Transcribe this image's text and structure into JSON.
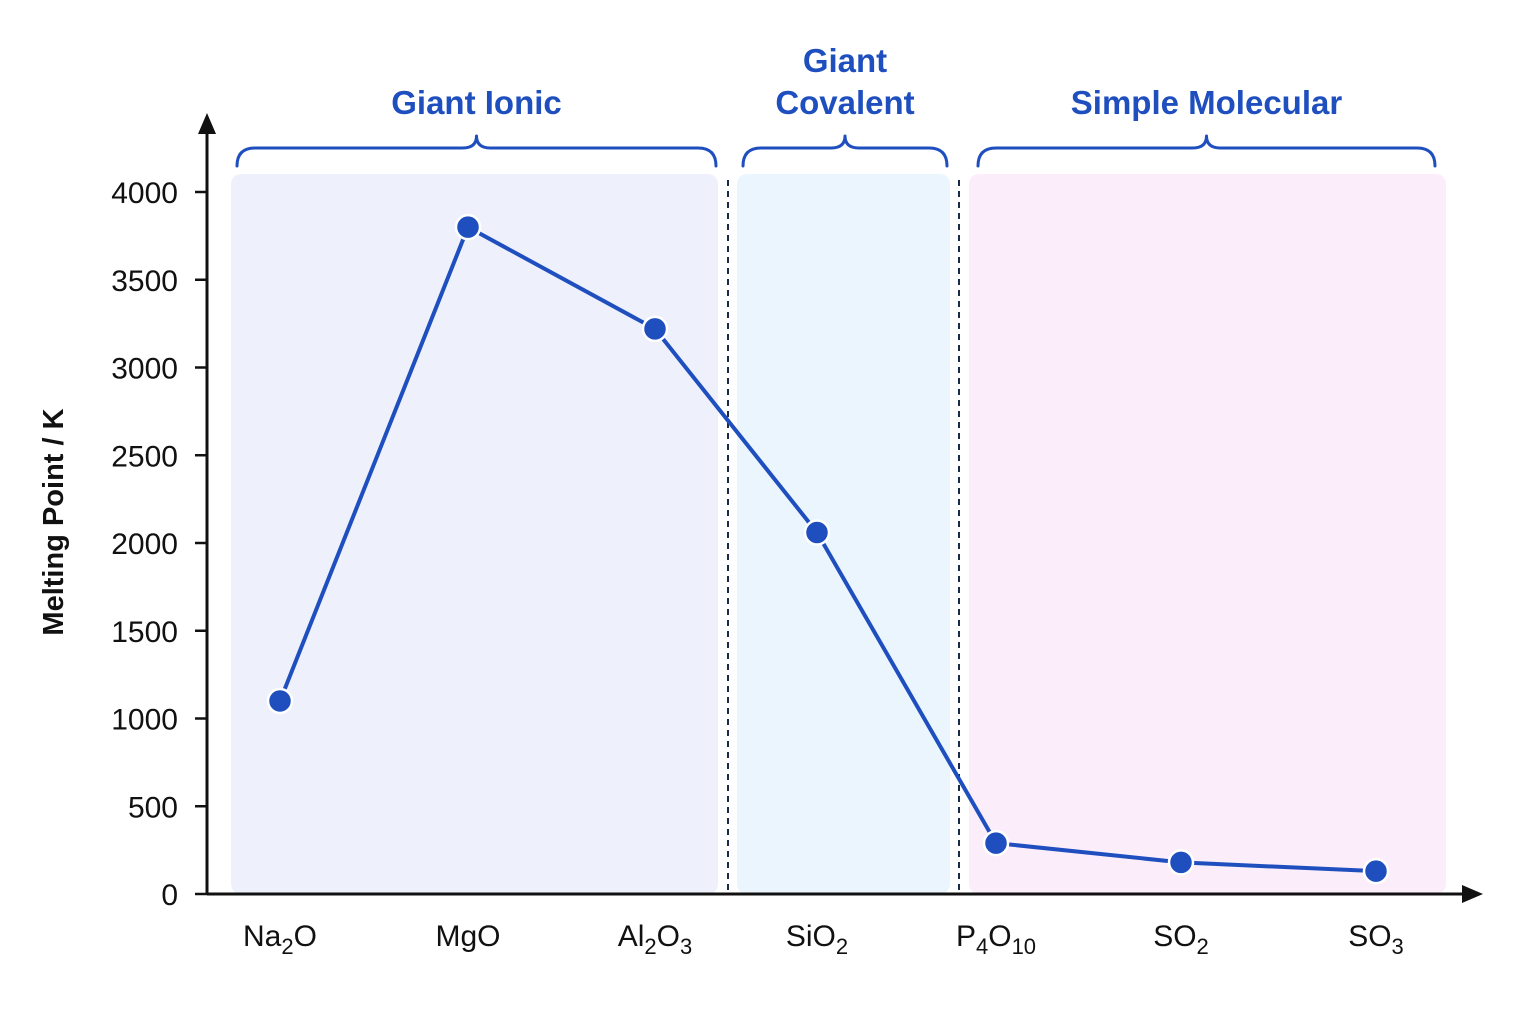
{
  "chart_data": {
    "type": "line",
    "title": "",
    "ylabel": "Melting Point  / K",
    "xlabel": "",
    "ylim": [
      0,
      4000
    ],
    "yticks": [
      0,
      500,
      1000,
      1500,
      2000,
      2500,
      3000,
      3500,
      4000
    ],
    "categories": [
      {
        "base": "Na",
        "parts": [
          [
            "Na",
            ""
          ],
          [
            "2",
            "sub"
          ],
          [
            "O",
            ""
          ]
        ]
      },
      {
        "base": "MgO",
        "parts": [
          [
            "MgO",
            ""
          ]
        ]
      },
      {
        "base": "Al",
        "parts": [
          [
            "Al",
            ""
          ],
          [
            "2",
            "sub"
          ],
          [
            "O",
            ""
          ],
          [
            "3",
            "sub"
          ]
        ]
      },
      {
        "base": "Si",
        "parts": [
          [
            "SiO",
            ""
          ],
          [
            "2",
            "sub"
          ]
        ]
      },
      {
        "base": "P",
        "parts": [
          [
            "P",
            ""
          ],
          [
            "4",
            "sub"
          ],
          [
            "O",
            ""
          ],
          [
            "10",
            "sub"
          ]
        ]
      },
      {
        "base": "S",
        "parts": [
          [
            "SO",
            ""
          ],
          [
            "2",
            "sub"
          ]
        ]
      },
      {
        "base": "S",
        "parts": [
          [
            "SO",
            ""
          ],
          [
            "3",
            "sub"
          ]
        ]
      }
    ],
    "category_text": [
      "Na2O",
      "MgO",
      "Al2O3",
      "SiO2",
      "P4O10",
      "SO2",
      "SO3"
    ],
    "series": [
      {
        "values": [
          1100,
          3800,
          3220,
          2060,
          290,
          180,
          130
        ],
        "color": "#1f4fbf"
      }
    ],
    "regions": [
      {
        "label_lines": [
          "Giant Ionic"
        ],
        "from_category": 0,
        "to_category": 2,
        "color": "#eef1fb"
      },
      {
        "label_lines": [
          "Giant",
          "Covalent"
        ],
        "from_category": 3,
        "to_category": 3,
        "color": "#eaf5fd"
      },
      {
        "label_lines": [
          "Simple Molecular"
        ],
        "from_category": 4,
        "to_category": 6,
        "color": "#fcedfa"
      }
    ],
    "grid": false,
    "legend": "none"
  }
}
